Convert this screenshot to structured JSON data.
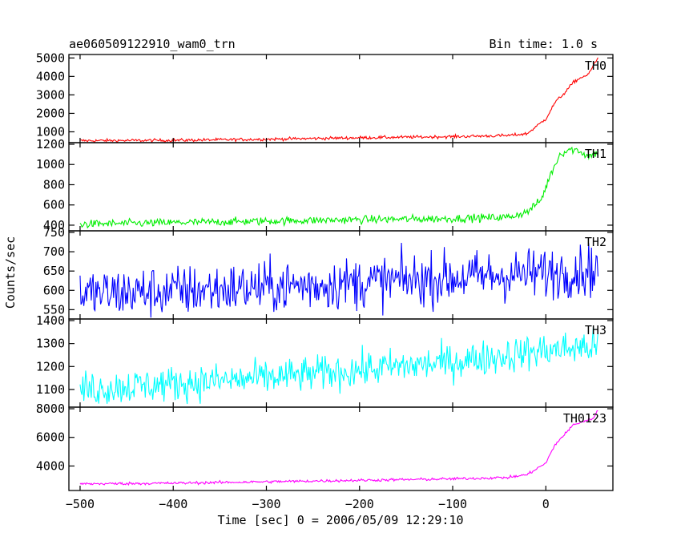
{
  "header": {
    "title": "ae060509122910_wam0_trn",
    "bin_time": "Bin time: 1.0 s"
  },
  "axes": {
    "xlabel": "Time [sec] 0 = 2006/05/09 12:29:10",
    "ylabel": "Counts/sec"
  },
  "chart_data": {
    "type": "line",
    "xlim": [
      -512,
      72
    ],
    "x_ticks": [
      -500,
      -400,
      -300,
      -200,
      -100,
      0
    ],
    "x_tick_labels": [
      "−500",
      "−400",
      "−300",
      "−200",
      "−100",
      "0"
    ],
    "x_step": 1,
    "x_range": [
      -500,
      56
    ],
    "grid": false,
    "panels": [
      {
        "name": "TH0",
        "color": "#ff0000",
        "ylim": [
          500,
          5100
        ],
        "yticks": [
          1000,
          2000,
          3000,
          4000,
          5000
        ],
        "knots": [
          [
            -500,
            520
          ],
          [
            -400,
            540
          ],
          [
            -300,
            600
          ],
          [
            -200,
            680
          ],
          [
            -100,
            740
          ],
          [
            -40,
            800
          ],
          [
            -20,
            900
          ],
          [
            0,
            1700
          ],
          [
            10,
            2600
          ],
          [
            20,
            3100
          ],
          [
            30,
            3700
          ],
          [
            40,
            4000
          ],
          [
            45,
            4050
          ],
          [
            50,
            4500
          ],
          [
            56,
            5000
          ]
        ],
        "noise": 60
      },
      {
        "name": "TH1",
        "color": "#00ee00",
        "ylim": [
          360,
          1200
        ],
        "yticks": [
          400,
          600,
          800,
          1000,
          1200
        ],
        "knots": [
          [
            -500,
            410
          ],
          [
            -400,
            425
          ],
          [
            -300,
            440
          ],
          [
            -200,
            455
          ],
          [
            -100,
            465
          ],
          [
            -40,
            480
          ],
          [
            -20,
            530
          ],
          [
            -5,
            650
          ],
          [
            5,
            900
          ],
          [
            15,
            1100
          ],
          [
            25,
            1150
          ],
          [
            35,
            1140
          ],
          [
            45,
            1080
          ],
          [
            56,
            1120
          ]
        ],
        "noise": 28
      },
      {
        "name": "TH2",
        "color": "#0000ff",
        "ylim": [
          530,
          750
        ],
        "yticks": [
          550,
          600,
          650,
          700,
          750
        ],
        "knots": [
          [
            -500,
            590
          ],
          [
            -400,
            598
          ],
          [
            -300,
            608
          ],
          [
            -200,
            620
          ],
          [
            -100,
            632
          ],
          [
            0,
            645
          ],
          [
            56,
            655
          ]
        ],
        "noise": 48
      },
      {
        "name": "TH3",
        "color": "#00ffff",
        "ylim": [
          1030,
          1400
        ],
        "yticks": [
          1100,
          1200,
          1300,
          1400
        ],
        "knots": [
          [
            -500,
            1100
          ],
          [
            -400,
            1125
          ],
          [
            -300,
            1150
          ],
          [
            -200,
            1185
          ],
          [
            -100,
            1220
          ],
          [
            0,
            1270
          ],
          [
            56,
            1290
          ]
        ],
        "noise": 55
      },
      {
        "name": "TH0123",
        "color": "#ff00ff",
        "ylim": [
          2400,
          8000
        ],
        "yticks": [
          4000,
          6000,
          8000
        ],
        "knots": [
          [
            -500,
            2750
          ],
          [
            -400,
            2800
          ],
          [
            -300,
            2900
          ],
          [
            -200,
            3000
          ],
          [
            -100,
            3100
          ],
          [
            -40,
            3200
          ],
          [
            -20,
            3400
          ],
          [
            0,
            4200
          ],
          [
            10,
            5500
          ],
          [
            20,
            6200
          ],
          [
            30,
            6900
          ],
          [
            40,
            7100
          ],
          [
            50,
            7300
          ],
          [
            56,
            7900
          ]
        ],
        "noise": 70
      }
    ]
  }
}
